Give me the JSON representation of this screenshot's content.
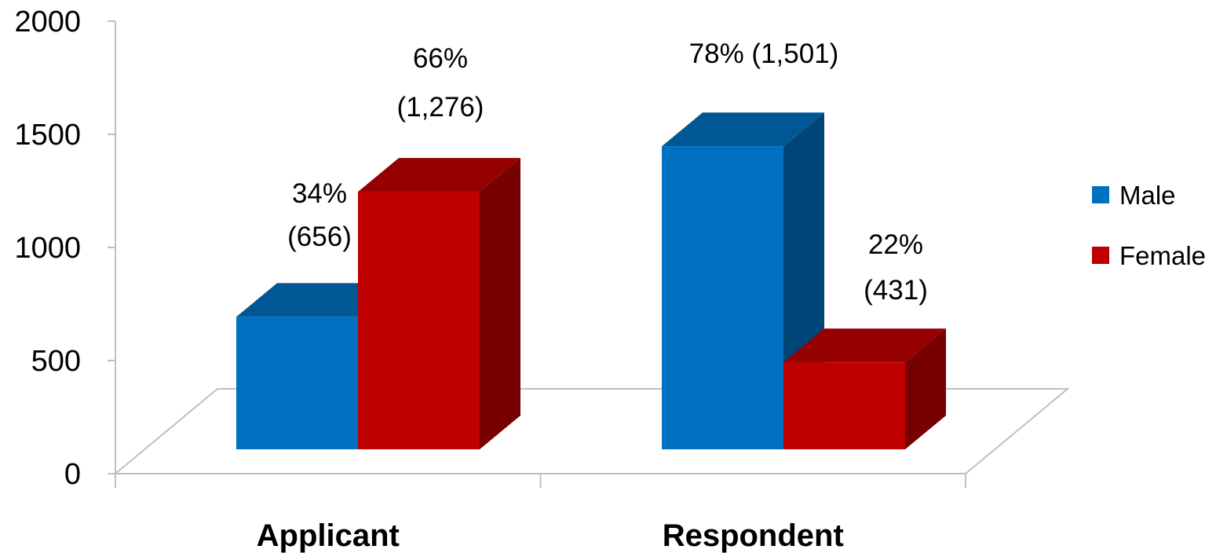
{
  "chart_data": {
    "type": "bar",
    "style": "3d-clustered-column",
    "title": "",
    "xlabel": "",
    "ylabel": "",
    "ylim": [
      0,
      2000
    ],
    "yticks": [
      "0",
      "500",
      "1000",
      "1500",
      "2000"
    ],
    "categories": [
      "Applicant",
      "Respondent"
    ],
    "series": [
      {
        "name": "Male",
        "color": "#0070C0",
        "values": [
          656,
          1501
        ],
        "labels": [
          [
            "34%",
            "(656)"
          ],
          [
            "78% (1,501)"
          ]
        ]
      },
      {
        "name": "Female",
        "color": "#C00000",
        "values": [
          1276,
          431
        ],
        "labels": [
          [
            "66%",
            "(1,276)"
          ],
          [
            "22%",
            "(431)"
          ]
        ]
      }
    ],
    "legend_position": "right",
    "grid": false
  }
}
